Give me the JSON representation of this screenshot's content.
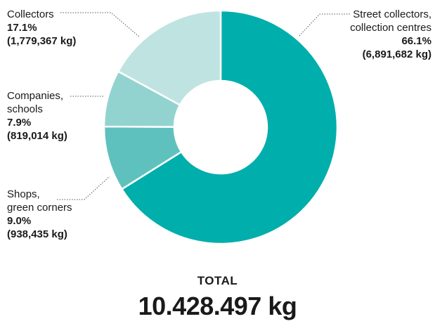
{
  "chart_data": {
    "type": "pie",
    "categories": [
      "Street collectors, collection centres",
      "Shops, green corners",
      "Companies, schools",
      "Collectors"
    ],
    "values": [
      6891682,
      938435,
      819014,
      1779367
    ],
    "unit": "kg",
    "slices": [
      {
        "name": "Street collectors, collection centres",
        "name_lines": [
          "Street collectors,",
          "collection centres"
        ],
        "percent_label": "66.1%",
        "amount_label": "(6,891,682 kg)",
        "value": 6891682,
        "color": "#00aeab"
      },
      {
        "name": "Shops, green corners",
        "name_lines": [
          "Shops,",
          "green corners"
        ],
        "percent_label": "9.0%",
        "amount_label": "(938,435 kg)",
        "value": 938435,
        "color": "#5fc1bd"
      },
      {
        "name": "Companies, schools",
        "name_lines": [
          "Companies,",
          "schools"
        ],
        "percent_label": "7.9%",
        "amount_label": "(819,014 kg)",
        "value": 819014,
        "color": "#92d3cf"
      },
      {
        "name": "Collectors",
        "name_lines": [
          "Collectors"
        ],
        "percent_label": "17.1%",
        "amount_label": "(1,779,367 kg)",
        "value": 1779367,
        "color": "#bfe3e1"
      }
    ],
    "donut": true,
    "start": "top, clockwise",
    "total_caption": "TOTAL",
    "total_value": "10.428.497 kg"
  }
}
